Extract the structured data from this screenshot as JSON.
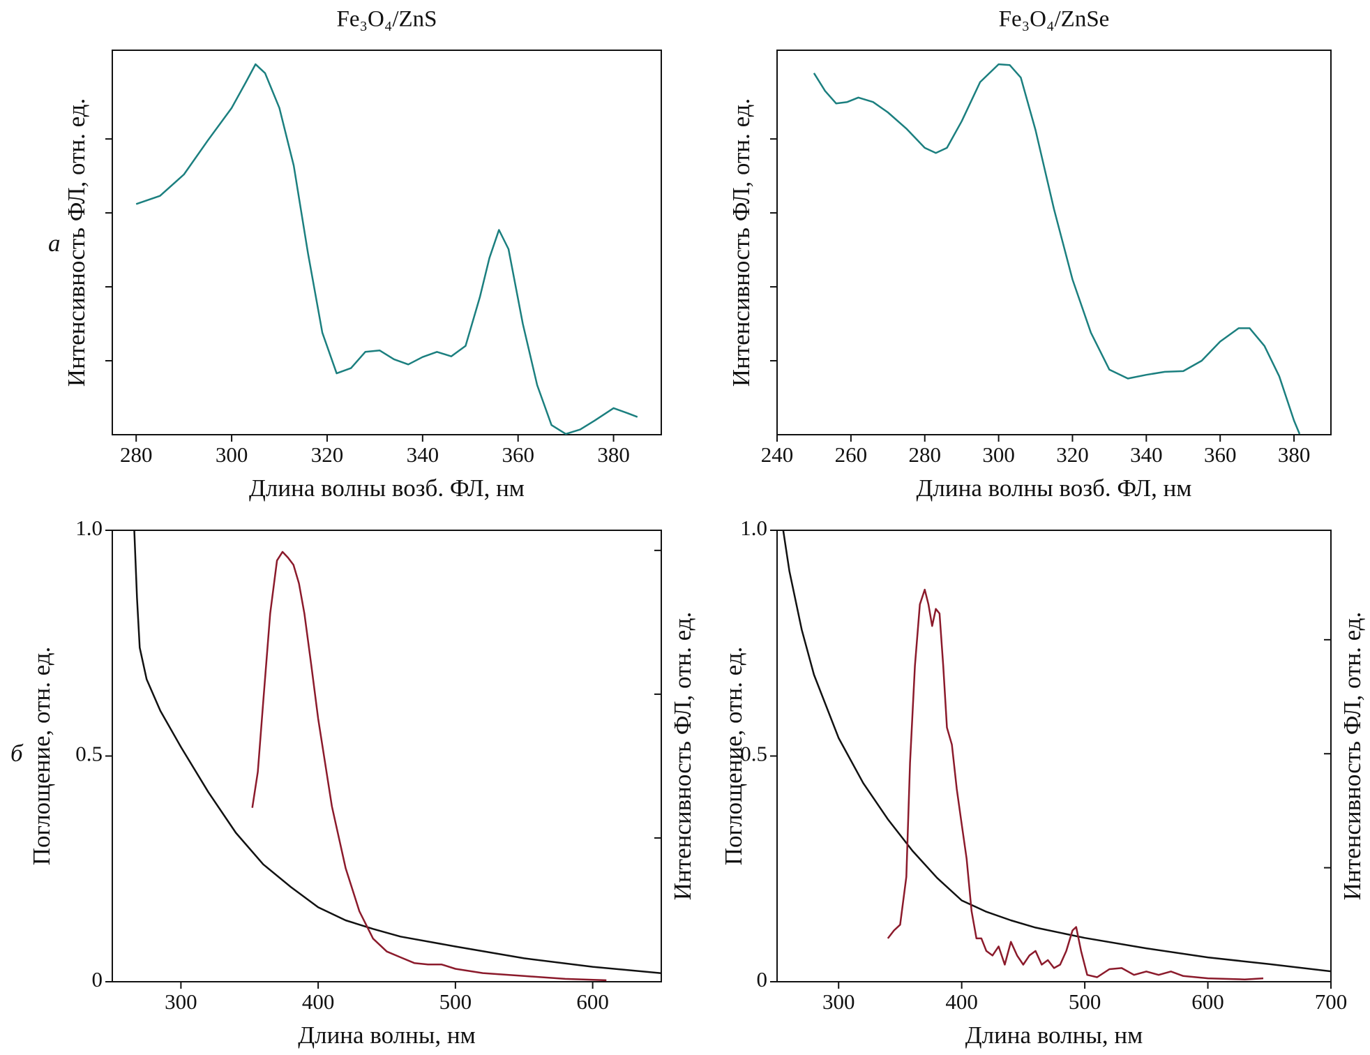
{
  "chart_data": [
    {
      "type": "line",
      "title": "Fe₃O₄/ZnS",
      "panel_label": "а",
      "xlabel": "Длина волны возб. ФЛ, нм",
      "ylabel": "Интенсивность ФЛ, отн. ед.",
      "xlim": [
        275,
        390
      ],
      "xticks": [
        280,
        300,
        320,
        340,
        360,
        380
      ],
      "ylim": [
        0,
        5.2
      ],
      "yticks": [
        1,
        2,
        3,
        4
      ],
      "ytick_labels": false,
      "series": [
        {
          "color": "#1b7f7f",
          "x": [
            280,
            285,
            290,
            295,
            300,
            303,
            305,
            307,
            310,
            313,
            316,
            319,
            322,
            325,
            328,
            331,
            334,
            337,
            340,
            343,
            346,
            349,
            352,
            354,
            356,
            358,
            361,
            364,
            367,
            370,
            373,
            376,
            380,
            383,
            385
          ],
          "values": [
            3.12,
            3.23,
            3.52,
            3.98,
            4.42,
            4.77,
            5.01,
            4.89,
            4.42,
            3.64,
            2.45,
            1.38,
            0.83,
            0.9,
            1.12,
            1.14,
            1.02,
            0.95,
            1.05,
            1.12,
            1.06,
            1.2,
            1.86,
            2.39,
            2.77,
            2.51,
            1.5,
            0.67,
            0.13,
            0.01,
            0.07,
            0.19,
            0.36,
            0.29,
            0.24
          ]
        }
      ]
    },
    {
      "type": "line",
      "title": "Fe₃O₄/ZnSe",
      "xlabel": "Длина волны возб. ФЛ, нм",
      "ylabel": "Интенсивность ФЛ, отн. ед.",
      "xlim": [
        240,
        390
      ],
      "xticks": [
        240,
        260,
        280,
        300,
        320,
        340,
        360,
        380
      ],
      "ylim": [
        0,
        5.2
      ],
      "yticks": [
        1,
        2,
        3,
        4
      ],
      "ytick_labels": false,
      "series": [
        {
          "color": "#1b7f7f",
          "x": [
            250,
            253,
            256,
            259,
            262,
            266,
            270,
            275,
            280,
            283,
            286,
            290,
            295,
            300,
            303,
            306,
            310,
            315,
            320,
            325,
            330,
            335,
            340,
            345,
            350,
            355,
            360,
            365,
            368,
            372,
            376,
            380,
            381.5
          ],
          "values": [
            4.89,
            4.65,
            4.48,
            4.5,
            4.56,
            4.5,
            4.36,
            4.14,
            3.88,
            3.81,
            3.88,
            4.24,
            4.77,
            5.01,
            5.0,
            4.83,
            4.12,
            3.05,
            2.1,
            1.38,
            0.88,
            0.76,
            0.81,
            0.85,
            0.86,
            1.0,
            1.26,
            1.44,
            1.44,
            1.2,
            0.79,
            0.19,
            0.01
          ]
        }
      ]
    },
    {
      "type": "line",
      "panel_label": "б",
      "xlabel": "Длина волны, нм",
      "ylabel": "Поглощение, отн. ед.",
      "y2label": "Интенсивность ФЛ, отн. ед.",
      "xlim": [
        250,
        650
      ],
      "xticks": [
        300,
        400,
        500,
        600
      ],
      "ylim": [
        0,
        1
      ],
      "yticks": [
        0,
        0.5,
        {
          "value": 1,
          "label": "1.0"
        }
      ],
      "y2lim": [
        0,
        3.14
      ],
      "y2ticks": [
        1,
        2,
        3
      ],
      "y2tick_labels": false,
      "series": [
        {
          "color": "#111111",
          "x": [
            266,
            268,
            270,
            275,
            285,
            300,
            320,
            340,
            360,
            380,
            400,
            420,
            440,
            460,
            500,
            550,
            600,
            650
          ],
          "values": [
            1.0,
            0.85,
            0.74,
            0.67,
            0.6,
            0.52,
            0.42,
            0.33,
            0.26,
            0.21,
            0.165,
            0.136,
            0.117,
            0.1,
            0.078,
            0.052,
            0.033,
            0.019
          ]
        },
        {
          "color": "#8b1a2b",
          "axis": "y2",
          "x": [
            352,
            356,
            360,
            365,
            370,
            374,
            378,
            382,
            386,
            390,
            395,
            400,
            410,
            420,
            430,
            440,
            450,
            460,
            470,
            480,
            490,
            500,
            520,
            550,
            580,
            610
          ],
          "values": [
            1.21,
            1.46,
            1.95,
            2.56,
            2.93,
            2.99,
            2.95,
            2.9,
            2.77,
            2.56,
            2.2,
            1.83,
            1.22,
            0.79,
            0.49,
            0.3,
            0.21,
            0.17,
            0.13,
            0.12,
            0.12,
            0.09,
            0.06,
            0.04,
            0.02,
            0.01
          ]
        }
      ]
    },
    {
      "type": "line",
      "xlabel": "Длина волны, нм",
      "ylabel": "Поглощение, отн. ед.",
      "y2label": "Интенсивность ФЛ, отн. ед.",
      "xlim": [
        250,
        700
      ],
      "xticks": [
        300,
        400,
        500,
        600,
        700
      ],
      "ylim": [
        0,
        1
      ],
      "yticks": [
        0,
        0.5,
        {
          "value": 1,
          "label": "1.0"
        }
      ],
      "y2lim": [
        0,
        3.96
      ],
      "y2ticks": [
        1,
        2,
        3
      ],
      "y2tick_labels": false,
      "series": [
        {
          "color": "#111111",
          "x": [
            255,
            260,
            270,
            280,
            300,
            320,
            340,
            360,
            380,
            400,
            420,
            440,
            460,
            500,
            550,
            600,
            650,
            700
          ],
          "values": [
            1.0,
            0.91,
            0.78,
            0.68,
            0.54,
            0.44,
            0.36,
            0.29,
            0.23,
            0.18,
            0.155,
            0.136,
            0.12,
            0.097,
            0.074,
            0.054,
            0.039,
            0.023
          ]
        },
        {
          "color": "#8b1a2b",
          "axis": "y2",
          "x": [
            340,
            345,
            350,
            355,
            358,
            362,
            366,
            370,
            373,
            376,
            379,
            382,
            385,
            388,
            392,
            396,
            400,
            404,
            408,
            412,
            416,
            420,
            425,
            430,
            435,
            440,
            445,
            450,
            455,
            460,
            465,
            470,
            475,
            480,
            485,
            490,
            493,
            497,
            502,
            510,
            520,
            530,
            540,
            550,
            560,
            570,
            580,
            600,
            630,
            645
          ],
          "values": [
            0.38,
            0.45,
            0.5,
            0.92,
            1.92,
            2.77,
            3.31,
            3.44,
            3.31,
            3.12,
            3.27,
            3.23,
            2.77,
            2.23,
            2.08,
            1.69,
            1.38,
            1.08,
            0.62,
            0.38,
            0.38,
            0.27,
            0.23,
            0.31,
            0.15,
            0.35,
            0.23,
            0.15,
            0.23,
            0.27,
            0.15,
            0.19,
            0.12,
            0.15,
            0.27,
            0.45,
            0.48,
            0.27,
            0.06,
            0.04,
            0.11,
            0.12,
            0.06,
            0.09,
            0.06,
            0.09,
            0.05,
            0.03,
            0.02,
            0.03
          ]
        }
      ]
    }
  ]
}
